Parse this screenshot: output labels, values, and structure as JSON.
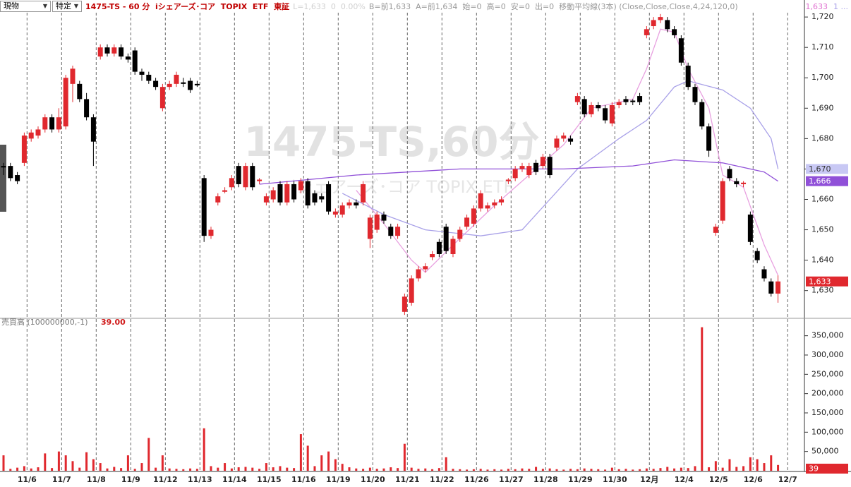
{
  "toolbar": {
    "account": "現物",
    "tax": "特定"
  },
  "header": {
    "title": "1475-TS - 60 分  iシェアーズ･コア  TOPIX  ETF  東証",
    "last": "L=1,633  0  0.00%",
    "info": "B=前1,633  A=前1,634  始=0  高=0  安=0  出=0  移動平均線(3本) (Close,Close,Close,4,24,120,0)",
    "ma1": "1,633",
    "ma2": "1 ..."
  },
  "chart_data": [
    {
      "type": "candlestick",
      "watermark": "1475-TS,60分",
      "watermark_sub": "iシェアーズ･コア  TOPIX  ETF",
      "up_color": "#e0282e",
      "down_color": "#000000",
      "xlim": [
        -0.51,
        115.82
      ],
      "ylim": [
        1621.1,
        1725.6
      ],
      "yticks": [
        {
          "value": 1630,
          "label": "1,630"
        },
        {
          "value": 1640,
          "label": "1,640"
        },
        {
          "value": 1650,
          "label": "1,650"
        },
        {
          "value": 1660,
          "label": "1,660"
        },
        {
          "value": 1670,
          "label": "1,670"
        },
        {
          "value": 1680,
          "label": "1,680"
        },
        {
          "value": 1690,
          "label": "1,690"
        },
        {
          "value": 1700,
          "label": "1,700"
        },
        {
          "value": 1710,
          "label": "1,710"
        },
        {
          "value": 1720,
          "label": "1,720"
        }
      ],
      "xticks": [
        {
          "value": 3.4,
          "label": "11/6"
        },
        {
          "value": 8.4,
          "label": "11/7"
        },
        {
          "value": 13.4,
          "label": "11/8"
        },
        {
          "value": 18.4,
          "label": "11/9"
        },
        {
          "value": 23.4,
          "label": "11/12"
        },
        {
          "value": 28.4,
          "label": "11/13"
        },
        {
          "value": 33.4,
          "label": "11/14"
        },
        {
          "value": 38.4,
          "label": "11/15"
        },
        {
          "value": 43.4,
          "label": "11/16"
        },
        {
          "value": 48.4,
          "label": "11/19"
        },
        {
          "value": 53.4,
          "label": "11/20"
        },
        {
          "value": 58.4,
          "label": "11/21"
        },
        {
          "value": 63.4,
          "label": "11/22"
        },
        {
          "value": 68.4,
          "label": "11/26"
        },
        {
          "value": 73.4,
          "label": "11/27"
        },
        {
          "value": 78.4,
          "label": "11/28"
        },
        {
          "value": 83.4,
          "label": "11/29"
        },
        {
          "value": 88.4,
          "label": "11/30"
        },
        {
          "value": 93.4,
          "label": "12月"
        },
        {
          "value": 98.4,
          "label": "12/4"
        },
        {
          "value": 103.4,
          "label": "12/5"
        },
        {
          "value": 108.4,
          "label": "12/6"
        },
        {
          "value": 113.4,
          "label": "12/7"
        }
      ],
      "values": [
        [
          1671,
          1672,
          1668,
          1670.5
        ],
        [
          1671,
          1672,
          1666,
          1667
        ],
        [
          1668,
          1669,
          1665,
          1666
        ],
        [
          1672,
          1682,
          1671,
          1681
        ],
        [
          1680,
          1683,
          1679,
          1682
        ],
        [
          1681,
          1684,
          1680,
          1683
        ],
        [
          1683,
          1688,
          1682,
          1687
        ],
        [
          1687,
          1688,
          1682,
          1683
        ],
        [
          1683,
          1690,
          1682,
          1687
        ],
        [
          1684,
          1701,
          1683,
          1700
        ],
        [
          1698,
          1704,
          1692,
          1703
        ],
        [
          1698,
          1699,
          1692,
          1693
        ],
        [
          1693,
          1695,
          1686,
          1687
        ],
        [
          1687,
          1688,
          1671,
          1679
        ],
        [
          1707,
          1711,
          1706,
          1710
        ],
        [
          1710,
          1711,
          1707,
          1708
        ],
        [
          1708,
          1711,
          1707,
          1710
        ],
        [
          1710,
          1711,
          1706,
          1707
        ],
        [
          1707,
          1708,
          1705,
          1706
        ],
        [
          1709,
          1710,
          1701,
          1702
        ],
        [
          1702,
          1703,
          1699,
          1701
        ],
        [
          1701,
          1702,
          1698,
          1699
        ],
        [
          1699,
          1700,
          1696,
          1697
        ],
        [
          1690,
          1698,
          1689,
          1697
        ],
        [
          1697,
          1699,
          1696,
          1698
        ],
        [
          1698,
          1702,
          1697,
          1701
        ],
        [
          1698.5,
          1700,
          1697,
          1698
        ],
        [
          1699,
          1700,
          1695,
          1696
        ],
        [
          1698,
          1699,
          1697,
          1697.5
        ],
        [
          1667,
          1668,
          1646,
          1648
        ],
        [
          1648,
          1651,
          1647,
          1650
        ],
        [
          1659,
          1662,
          1658,
          1661
        ],
        [
          1662.5,
          1664,
          1662,
          1663
        ],
        [
          1664,
          1668,
          1663,
          1667
        ],
        [
          1671,
          1672,
          1664,
          1665
        ],
        [
          1664,
          1672,
          1663,
          1671
        ],
        [
          1671,
          1672,
          1663,
          1664
        ],
        [
          1666,
          1667,
          1665,
          1666.5
        ],
        [
          1659,
          1662,
          1658,
          1661
        ],
        [
          1660,
          1664,
          1659,
          1663
        ],
        [
          1665,
          1666,
          1658,
          1659
        ],
        [
          1659,
          1666,
          1658,
          1665
        ],
        [
          1665,
          1666,
          1659,
          1660
        ],
        [
          1663,
          1667,
          1662,
          1666
        ],
        [
          1666,
          1667,
          1657,
          1658
        ],
        [
          1662,
          1663,
          1658,
          1659
        ],
        [
          1661,
          1662,
          1659,
          1660
        ],
        [
          1665,
          1666,
          1655,
          1656
        ],
        [
          1655,
          1657,
          1654,
          1656
        ],
        [
          1655,
          1659,
          1654,
          1658
        ],
        [
          1658,
          1660,
          1657,
          1659
        ],
        [
          1659,
          1660,
          1657,
          1658
        ],
        [
          1659,
          1666,
          1658,
          1665
        ],
        [
          1647,
          1655,
          1644,
          1654
        ],
        [
          1650,
          1656,
          1649,
          1655
        ],
        [
          1655,
          1656,
          1652,
          1653
        ],
        [
          1651,
          1652,
          1647,
          1648
        ],
        [
          1648,
          1652,
          1647,
          1651
        ],
        [
          1623,
          1629,
          1622,
          1628
        ],
        [
          1626,
          1635,
          1625,
          1634
        ],
        [
          1634,
          1638,
          1633,
          1637
        ],
        [
          1637,
          1639,
          1636,
          1638
        ],
        [
          1641,
          1643,
          1640,
          1642
        ],
        [
          1646,
          1647,
          1641,
          1642
        ],
        [
          1651,
          1652,
          1642,
          1643
        ],
        [
          1642,
          1648,
          1641,
          1647
        ],
        [
          1647,
          1651,
          1646,
          1650
        ],
        [
          1651,
          1655,
          1650,
          1654
        ],
        [
          1652,
          1658,
          1651,
          1657
        ],
        [
          1657,
          1663,
          1656,
          1662
        ],
        [
          1657,
          1659,
          1656,
          1658
        ],
        [
          1658,
          1660,
          1657,
          1659
        ],
        [
          1659,
          1661,
          1658,
          1660
        ],
        [
          1666,
          1667,
          1665,
          1666.5
        ],
        [
          1667,
          1671,
          1666,
          1670
        ],
        [
          1670,
          1672,
          1669,
          1671
        ],
        [
          1668,
          1672,
          1667,
          1671
        ],
        [
          1672,
          1673,
          1668,
          1669
        ],
        [
          1671,
          1675,
          1670,
          1674
        ],
        [
          1674,
          1675,
          1667,
          1668
        ],
        [
          1677,
          1681,
          1676,
          1680
        ],
        [
          1680,
          1682,
          1679,
          1681
        ],
        [
          1680,
          1681,
          1678,
          1679
        ],
        [
          1692,
          1695,
          1691,
          1694
        ],
        [
          1693,
          1694,
          1687,
          1688
        ],
        [
          1688,
          1692,
          1687,
          1691
        ],
        [
          1691,
          1692,
          1689,
          1690
        ],
        [
          1690,
          1691,
          1685,
          1686
        ],
        [
          1685,
          1692,
          1684,
          1691
        ],
        [
          1691,
          1693,
          1690,
          1692
        ],
        [
          1693,
          1694,
          1691,
          1692
        ],
        [
          1692.5,
          1693,
          1691,
          1692
        ],
        [
          1694,
          1695,
          1691,
          1692
        ],
        [
          1714,
          1717,
          1713,
          1716
        ],
        [
          1717,
          1720,
          1716,
          1719
        ],
        [
          1719,
          1721,
          1718,
          1720
        ],
        [
          1719,
          1720,
          1715,
          1716
        ],
        [
          1716,
          1717,
          1713,
          1714
        ],
        [
          1713,
          1714,
          1704,
          1705
        ],
        [
          1704,
          1705,
          1696,
          1697
        ],
        [
          1697,
          1698,
          1691,
          1692
        ],
        [
          1692,
          1693,
          1683,
          1684
        ],
        [
          1684,
          1685,
          1674,
          1676
        ],
        [
          1649,
          1652,
          1648,
          1651
        ],
        [
          1653,
          1667,
          1652,
          1666
        ],
        [
          1670,
          1671,
          1666,
          1667
        ],
        [
          1666,
          1667,
          1664,
          1665
        ],
        [
          1665,
          1666,
          1664,
          1665.5
        ],
        [
          1655,
          1656,
          1645,
          1646
        ],
        [
          1643,
          1644,
          1639,
          1640
        ],
        [
          1637,
          1638,
          1633,
          1634
        ],
        [
          1633,
          1634,
          1628,
          1629
        ],
        [
          1629,
          1635,
          1626,
          1633
        ]
      ],
      "lines": [
        {
          "color": "#e8a0e0",
          "x": [
            51,
            55,
            59,
            61,
            65,
            71,
            77,
            81,
            85,
            91,
            93,
            95,
            97,
            99,
            102,
            104,
            107,
            110,
            112
          ],
          "values": [
            1663,
            1652,
            1640,
            1636,
            1645,
            1658,
            1670,
            1678,
            1690,
            1693,
            1703,
            1716,
            1715,
            1703,
            1690,
            1668,
            1664,
            1645,
            1635
          ]
        },
        {
          "color": "#a8a0e8",
          "x": [
            49,
            55,
            61,
            69,
            75,
            79,
            83,
            89,
            93,
            97,
            99,
            104,
            108,
            111,
            112
          ],
          "values": [
            1662,
            1655,
            1650,
            1648,
            1650,
            1660,
            1670,
            1680,
            1686,
            1697,
            1699,
            1696,
            1690,
            1680,
            1670
          ]
        },
        {
          "color": "#9050d8",
          "x": [
            37,
            51,
            66,
            81,
            91,
            97,
            104,
            110,
            112
          ],
          "values": [
            1665,
            1668,
            1670,
            1670,
            1671,
            1673,
            1672,
            1669,
            1666
          ]
        }
      ],
      "price_tags": [
        {
          "value": 1670,
          "label": "1,670",
          "color": "#c8c8f4",
          "text_color": "#333333"
        },
        {
          "value": 1666,
          "label": "1,666",
          "color": "#9050d8",
          "text_color": "#ffffff"
        },
        {
          "value": 1633,
          "label": "1,633",
          "color": "#e0282e",
          "text_color": "#ffffff"
        }
      ]
    },
    {
      "type": "bar",
      "title": "売買高 (100000000,-1)",
      "current_label": "39.00",
      "current_value": 39,
      "color": "#e0282e",
      "xlim": [
        -0.51,
        115.82
      ],
      "ylim": [
        0,
        387800
      ],
      "yticks": [
        {
          "value": 50000,
          "label": "50,000"
        },
        {
          "value": 100000,
          "label": "100,000"
        },
        {
          "value": 150000,
          "label": "150,000"
        },
        {
          "value": 200000,
          "label": "200,000"
        },
        {
          "value": 250000,
          "label": "250,000"
        },
        {
          "value": 300000,
          "label": "300,000"
        },
        {
          "value": 350000,
          "label": "350,000"
        }
      ],
      "values": [
        40000,
        5000,
        8000,
        12000,
        6000,
        9000,
        45000,
        7000,
        50000,
        40000,
        25000,
        8000,
        48000,
        30000,
        20000,
        6000,
        10000,
        7000,
        40000,
        5000,
        20000,
        85000,
        8000,
        40000,
        6000,
        5000,
        4000,
        6000,
        5000,
        110000,
        12000,
        8000,
        20000,
        6000,
        9000,
        10000,
        8000,
        5000,
        20000,
        9000,
        12000,
        8000,
        7000,
        95000,
        65000,
        12000,
        40000,
        50000,
        30000,
        18000,
        9000,
        6000,
        5000,
        8000,
        5000,
        6000,
        9000,
        7000,
        70000,
        8000,
        5000,
        6000,
        4000,
        7000,
        35000,
        5000,
        4000,
        3000,
        4000,
        5000,
        3000,
        4000,
        3000,
        5000,
        4000,
        6000,
        5000,
        10000,
        5000,
        6000,
        4000,
        3000,
        5000,
        4000,
        6000,
        5000,
        4000,
        3000,
        8000,
        4000,
        5000,
        3000,
        4000,
        6000,
        5000,
        7000,
        10000,
        6000,
        8000,
        7000,
        12000,
        372000,
        9000,
        25000,
        8000,
        30000,
        10000,
        12000,
        35000,
        30000,
        20000,
        40000,
        15000
      ]
    }
  ]
}
